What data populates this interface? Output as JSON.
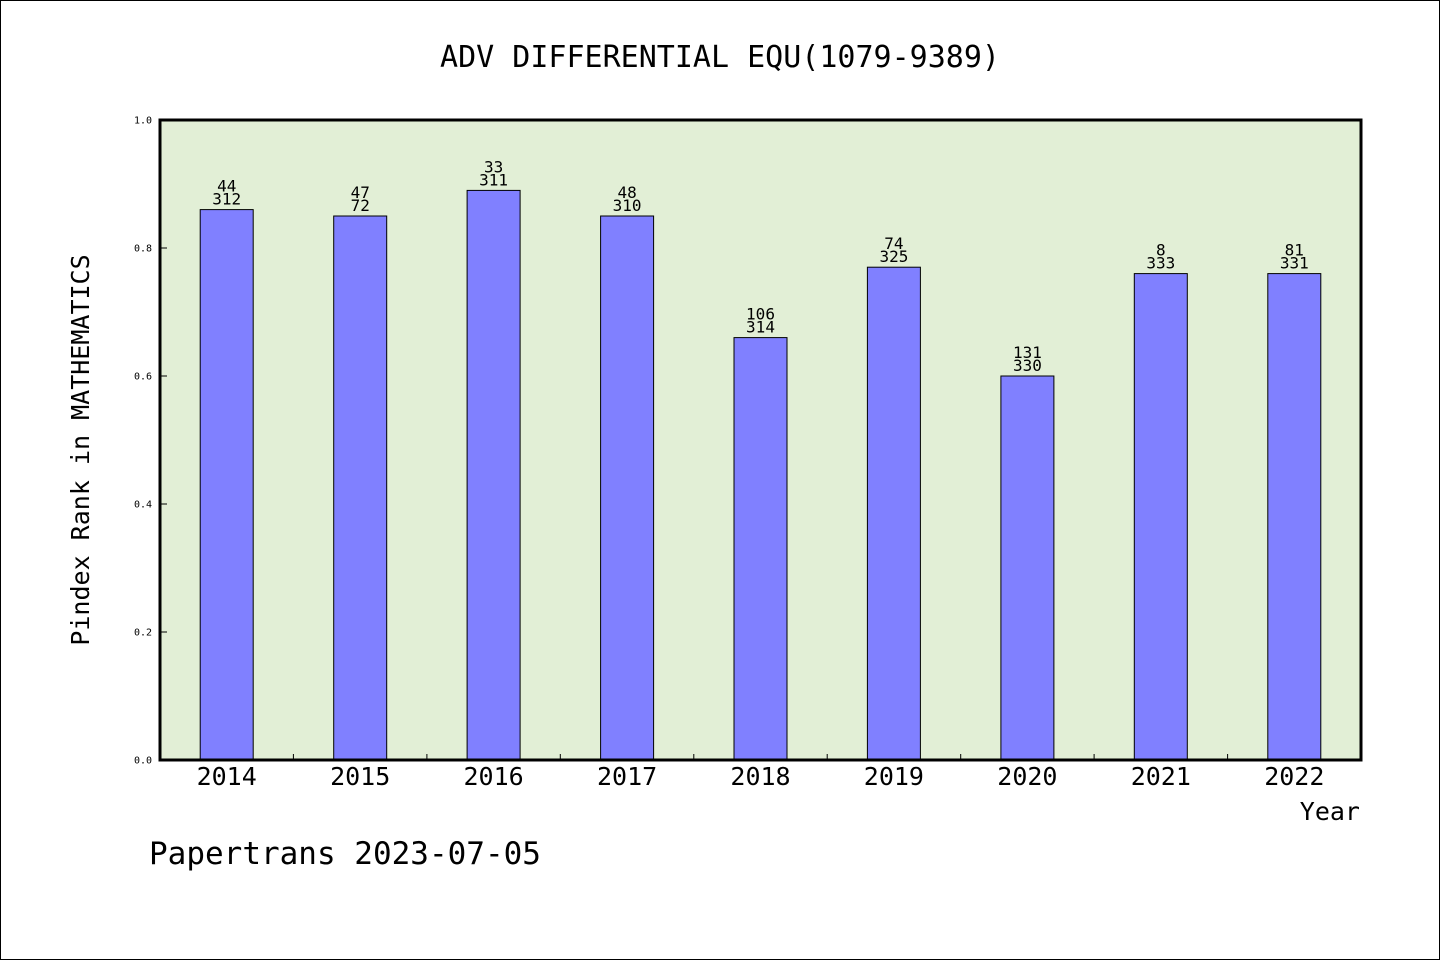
{
  "chart_data": {
    "type": "bar",
    "title": "ADV DIFFERENTIAL EQU(1079-9389)",
    "xlabel": "Year",
    "ylabel": "Pindex Rank in MATHEMATICS",
    "categories": [
      "2014",
      "2015",
      "2016",
      "2017",
      "2018",
      "2019",
      "2020",
      "2021",
      "2022"
    ],
    "values": [
      0.86,
      0.85,
      0.89,
      0.85,
      0.66,
      0.77,
      0.6,
      0.76,
      0.76
    ],
    "labels_top": [
      "44",
      "47",
      "33",
      "48",
      "106",
      "74",
      "131",
      "8",
      "81"
    ],
    "labels_bottom": [
      "312",
      "72",
      "311",
      "310",
      "314",
      "325",
      "330",
      "333",
      "331"
    ],
    "ylim": [
      0,
      1.0
    ],
    "yticks": [
      "0.0",
      "0.2",
      "0.4",
      "0.6",
      "0.8",
      "1.0"
    ],
    "grid": false,
    "colors": {
      "bar": "#8080ff",
      "plot_background": "#e2efd6",
      "axis": "#000000"
    }
  },
  "footer": {
    "source": "Papertrans 2023-07-05"
  }
}
